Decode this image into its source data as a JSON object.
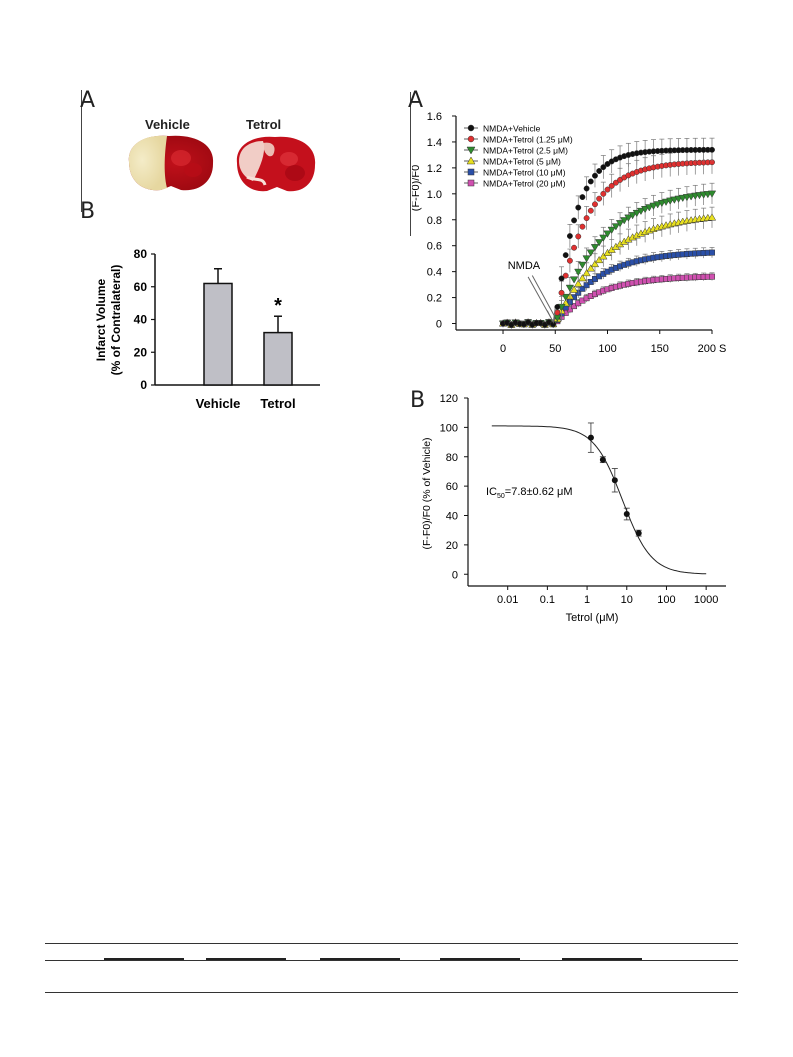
{
  "left_figure": {
    "panel_a_letter": "A",
    "panel_b_letter": "B",
    "brain_labels": [
      "Vehicle",
      "Tetrol"
    ]
  },
  "right_figure": {
    "panel_a_letter": "A",
    "panel_b_letter": "B"
  },
  "chart_data": [
    {
      "id": "infarct-volume",
      "type": "bar",
      "categories": [
        "Vehicle",
        "Tetrol"
      ],
      "values": [
        62,
        32
      ],
      "errors": [
        9,
        10
      ],
      "ylabel_line1": "Infarct Volume",
      "ylabel_line2": "(% of  Contralateral)",
      "yticks": [
        0,
        20,
        40,
        60,
        80
      ],
      "ylim": [
        0,
        80
      ],
      "annotation": "*",
      "bar_color": "#bfbfc6"
    },
    {
      "id": "calcium-time-course",
      "type": "line",
      "ylabel": "(F-F0)/F0",
      "x_tick_labels": [
        "0",
        "50",
        "100",
        "150",
        "200 S"
      ],
      "x_ticks": [
        0,
        50,
        100,
        150,
        200
      ],
      "xlim": [
        -45,
        200
      ],
      "yticks": [
        "0",
        "0.2",
        "0.4",
        "0.6",
        "0.8",
        "1.0",
        "1.2",
        "1.4",
        "1.6"
      ],
      "ylim": [
        -0.05,
        1.6
      ],
      "annotation": "NMDA",
      "onset": 50,
      "series": [
        {
          "name": "NMDA+Vehicle",
          "color": "#111111",
          "marker": "circle",
          "plateau": 1.34,
          "rise": 0.05,
          "err": 0.09
        },
        {
          "name": "NMDA+Tetrol (1.25 μM)",
          "color": "#e03030",
          "marker": "circle",
          "plateau": 1.25,
          "rise": 0.035,
          "err": 0.09
        },
        {
          "name": "NMDA+Tetrol (2.5 μM)",
          "color": "#2e8b2e",
          "marker": "triangle-down",
          "plateau": 1.04,
          "rise": 0.022,
          "err": 0.08
        },
        {
          "name": "NMDA+Tetrol (5 μM)",
          "color": "#e8e020",
          "marker": "triangle-up",
          "plateau": 0.86,
          "rise": 0.02,
          "err": 0.08
        },
        {
          "name": "NMDA+Tetrol (10 μM)",
          "color": "#2a4fa8",
          "marker": "square",
          "plateau": 0.56,
          "rise": 0.025,
          "err": 0.04
        },
        {
          "name": "NMDA+Tetrol (20 μM)",
          "color": "#d050b0",
          "marker": "square",
          "plateau": 0.37,
          "rise": 0.025,
          "err": 0.03
        }
      ]
    },
    {
      "id": "dose-response",
      "type": "scatter",
      "ylabel": "(F-F0)/F0 (% of Vehicle)",
      "xlabel": "Tetrol (μM)",
      "x_scale": "log",
      "x_ticks": [
        0.01,
        0.1,
        1,
        10,
        100,
        1000
      ],
      "x_tick_labels": [
        "0.01",
        "0.1",
        "1",
        "10",
        "100",
        "1000"
      ],
      "yticks": [
        0,
        20,
        40,
        60,
        80,
        100,
        120
      ],
      "ylim": [
        -8,
        120
      ],
      "annotation_main": "IC",
      "annotation_sub": "50",
      "annotation_rest": "=7.8±0.62 μM",
      "ic50": 7.8,
      "top": 101,
      "hill": 1.2,
      "points": [
        {
          "x": 1.25,
          "y": 93,
          "err": 10
        },
        {
          "x": 2.5,
          "y": 78,
          "err": 2
        },
        {
          "x": 5,
          "y": 64,
          "err": 8
        },
        {
          "x": 10,
          "y": 41,
          "err": 4
        },
        {
          "x": 20,
          "y": 28,
          "err": 2
        }
      ]
    }
  ]
}
